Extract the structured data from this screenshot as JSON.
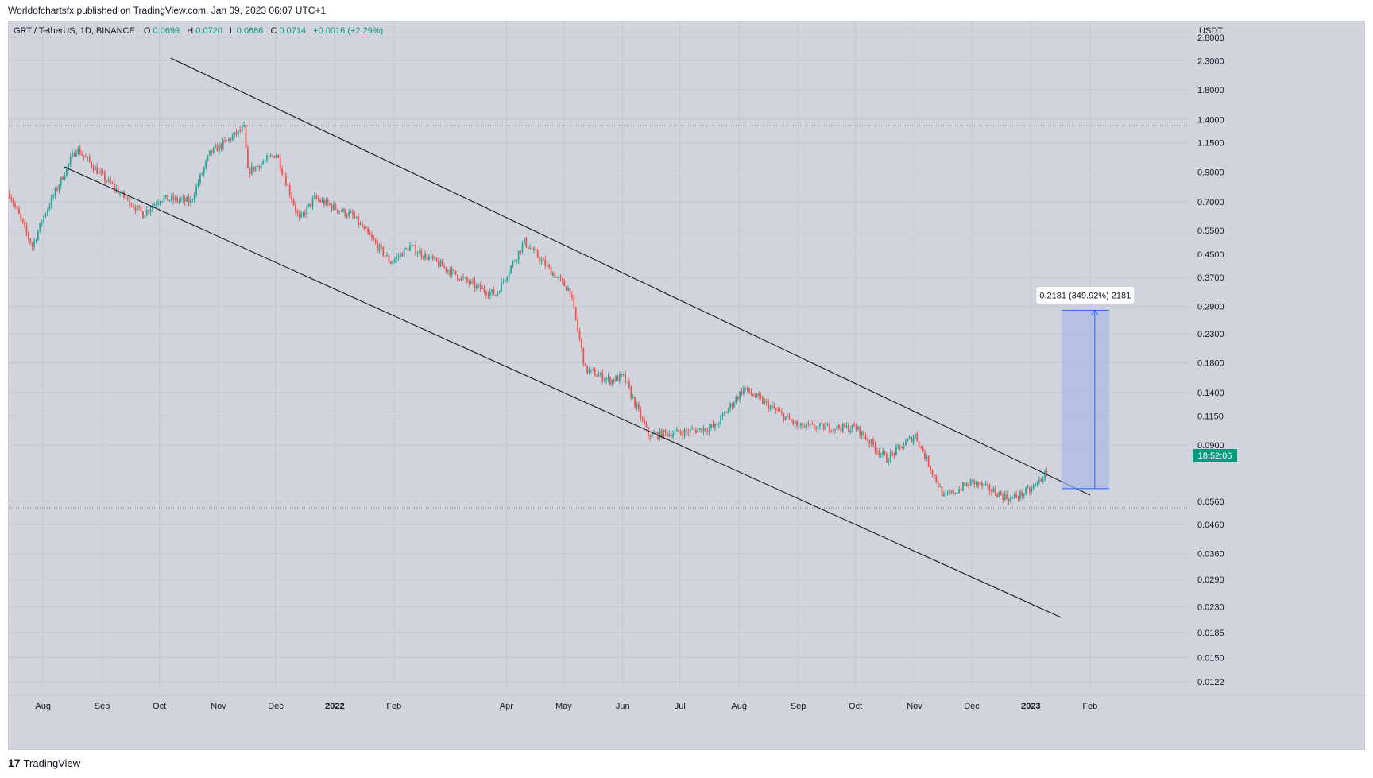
{
  "publication": "Worldofchartsfx published on TradingView.com, Jan 09, 2023 06:07 UTC+1",
  "footer": {
    "logo_mark": "17",
    "brand": "TradingView"
  },
  "colors": {
    "up": "#26a69a",
    "down": "#ef5350",
    "background": "#d1d4dc",
    "grid": "#c4c7d0",
    "measure_fill": "#aab8e6",
    "measure_line": "#2962ff"
  },
  "legend": {
    "symbol": "GRT / TetherUS, 1D, BINANCE",
    "o_label": "O",
    "o_value": "0.0699",
    "h_label": "H",
    "h_value": "0.0720",
    "l_label": "L",
    "l_value": "0.0686",
    "c_label": "C",
    "c_value": "0.0714",
    "change": "+0.0016 (+2.29%)"
  },
  "chart_data": {
    "type": "candlestick",
    "title": "GRT / TetherUS, 1D, BINANCE",
    "scale": "logarithmic",
    "currency": "USDT",
    "y_ticks": [
      "2.8000",
      "2.3000",
      "1.8000",
      "1.4000",
      "1.1500",
      "0.9000",
      "0.7000",
      "0.5500",
      "0.4500",
      "0.3700",
      "0.2900",
      "0.2300",
      "0.1800",
      "0.1400",
      "0.1150",
      "0.0900",
      "0.0560",
      "0.0460",
      "0.0360",
      "0.0290",
      "0.0230",
      "0.0185",
      "0.0150",
      "0.0122"
    ],
    "y_range": [
      0.0115,
      3.2
    ],
    "x_ticks": [
      "Aug",
      "Sep",
      "Oct",
      "Nov",
      "Dec",
      "2022",
      "Feb",
      "Apr",
      "May",
      "Jun",
      "Jul",
      "Aug",
      "Sep",
      "Oct",
      "Nov",
      "Dec",
      "2023",
      "Feb"
    ],
    "bold_x_ticks": [
      "2022",
      "2023"
    ],
    "keypoints_date_price": [
      [
        "Jul 2021",
        0.75
      ],
      [
        "late Jul 2021",
        0.48
      ],
      [
        "Aug 2021",
        0.62
      ],
      [
        "mid Aug 2021",
        1.1
      ],
      [
        "Sep 2021",
        0.85
      ],
      [
        "late Sep 2021",
        0.63
      ],
      [
        "Oct 2021",
        0.72
      ],
      [
        "mid Oct 2021",
        0.7
      ],
      [
        "late Oct 2021",
        1.05
      ],
      [
        "mid Nov 2021",
        1.3
      ],
      [
        "Nov 2021",
        0.9
      ],
      [
        "Dec 2021",
        1.05
      ],
      [
        "mid Dec 2021",
        0.6
      ],
      [
        "late Dec 2021",
        0.72
      ],
      [
        "mid Jan 2022",
        0.62
      ],
      [
        "Feb 2022",
        0.42
      ],
      [
        "mid Feb 2022",
        0.48
      ],
      [
        "Mar 2022",
        0.34
      ],
      [
        "mid Mar 2022",
        0.32
      ],
      [
        "Apr 2022",
        0.5
      ],
      [
        "mid Apr 2022",
        0.37
      ],
      [
        "early May 2022",
        0.33
      ],
      [
        "mid May 2022",
        0.17
      ],
      [
        "late May 2022",
        0.155
      ],
      [
        "Jun 2022",
        0.16
      ],
      [
        "mid Jun 2022",
        0.098
      ],
      [
        "Jul 2022",
        0.1
      ],
      [
        "mid Jul 2022",
        0.105
      ],
      [
        "Aug 2022",
        0.145
      ],
      [
        "Sep 2022",
        0.105
      ],
      [
        "Oct 2022",
        0.104
      ],
      [
        "late Oct 2022",
        0.08
      ],
      [
        "Nov 2022",
        0.098
      ],
      [
        "mid Nov 2022",
        0.058
      ],
      [
        "Dec 2022",
        0.066
      ],
      [
        "late Dec 2022",
        0.057
      ],
      [
        "Jan 2023",
        0.062
      ],
      [
        "Jan 09 2023",
        0.0714
      ]
    ],
    "last_price": 0.0714,
    "countdown": "18:52:06",
    "horizontal_levels": [
      1.33,
      0.053
    ],
    "channel_lines": [
      "upper trendline",
      "lower trendline"
    ],
    "measure": {
      "label": "0.2181 (349.92%) 2181",
      "from_price": 0.0623,
      "to_price": 0.2804
    }
  }
}
